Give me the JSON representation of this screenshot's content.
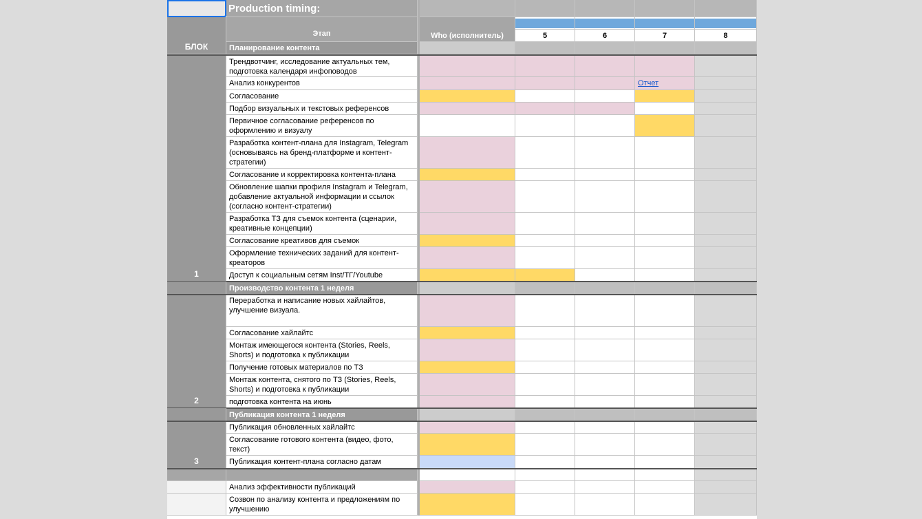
{
  "sheet": {
    "title": "Production timing:",
    "header": {
      "block": "БЛОК",
      "stage": "Этап",
      "who": "Who (исполнитель)",
      "weeks": [
        5,
        6,
        7,
        8
      ]
    },
    "blocks": [
      {
        "label": "1",
        "section": "Планирование контента",
        "rows": [
          {
            "task": "Трендвотчинг, исследование актуальных тем, подготовка календаря инфоповодов"
          },
          {
            "task": "Анализ конкурентов",
            "link": "Отчет"
          },
          {
            "task": "Согласование"
          },
          {
            "task": "Подбор визуальных и текстовых референсов"
          },
          {
            "task": "Первичное согласование референсов по оформлению и визуалу"
          },
          {
            "task": "Разработка контент-плана для Instagram, Telegram (основываясь на бренд-платформе и контент-стратегии)"
          },
          {
            "task": "Согласование и корректировка контента-плана"
          },
          {
            "task": "Обновление шапки профиля Instagram и Telegram, добавление актуальной информации и ссылок (согласно контент-стратегии)"
          },
          {
            "task": "Разработка ТЗ для съемок контента (сценарии, креативные концепции)"
          },
          {
            "task": "Согласование креативов для съемок"
          },
          {
            "task": "Оформление технических заданий для контент-креаторов"
          },
          {
            "task": "Доступ к социальным сетям Inst/ТГ/Youtube"
          }
        ]
      },
      {
        "label": "2",
        "section": "Производство контента 1 неделя",
        "rows": [
          {
            "task": "Переработка и написание новых хайлайтов, улучшение визуала."
          },
          {
            "task": "Согласование хайлайтс"
          },
          {
            "task": "Монтаж имеющегося контента (Stories, Reels, Shorts) и подготовка к публикации"
          },
          {
            "task": "Получение готовых материалов по ТЗ"
          },
          {
            "task": "Монтаж контента, снятого по ТЗ (Stories, Reels, Shorts) и подготовка к публикации"
          },
          {
            "task": "подготовка контента на июнь"
          }
        ]
      },
      {
        "label": "3",
        "section": "Публикация контента 1 неделя",
        "rows": [
          {
            "task": "Публикация обновленных хайлайтс"
          },
          {
            "task": "Согласование готового контента (видео, фото, текст)"
          },
          {
            "task": "Публикация контент-плана согласно датам"
          }
        ]
      }
    ],
    "extra_rows": [
      {
        "task": "Анализ эффективности публикаций"
      },
      {
        "task": "Созвон по анализу контента и предложениям по улучшению"
      }
    ]
  }
}
